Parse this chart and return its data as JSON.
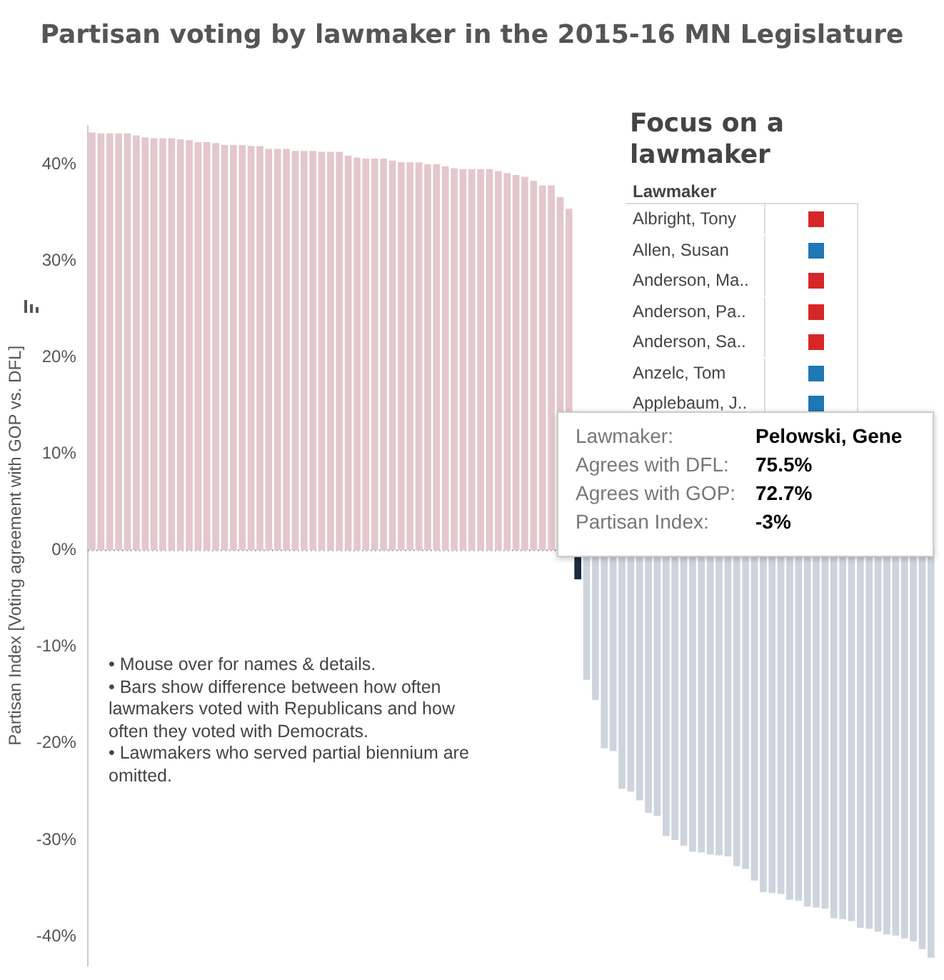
{
  "chart_data": {
    "type": "bar",
    "title": "Partisan voting by lawmaker in the 2015-16 MN Legislature",
    "ylabel": "Partisan Index [Voting agreement with GOP vs. DFL]",
    "categories": [
      null,
      null,
      null,
      null,
      null,
      null,
      null,
      null,
      null,
      null,
      null,
      null,
      null,
      null,
      null,
      null,
      null,
      null,
      null,
      null,
      null,
      null,
      null,
      null,
      null,
      null,
      null,
      null,
      null,
      null,
      null,
      null,
      null,
      null,
      null,
      null,
      null,
      null,
      null,
      null,
      null,
      null,
      null,
      null,
      null,
      null,
      null,
      null,
      null,
      null,
      null,
      null,
      null,
      null,
      null,
      null,
      null,
      null,
      null,
      null,
      null,
      null,
      null,
      null,
      null,
      null,
      null,
      null,
      null,
      null,
      null,
      null,
      null,
      null,
      null,
      null,
      null,
      null,
      null,
      null,
      null,
      null,
      null,
      null,
      null,
      null,
      null,
      null,
      null,
      null,
      null,
      null,
      null,
      null,
      null,
      null
    ],
    "values": [
      43.3,
      43.2,
      43.2,
      43.2,
      43.2,
      43.0,
      42.8,
      42.7,
      42.7,
      42.7,
      42.6,
      42.5,
      42.3,
      42.3,
      42.2,
      42.0,
      42.0,
      42.0,
      41.9,
      41.9,
      41.6,
      41.6,
      41.6,
      41.4,
      41.4,
      41.4,
      41.3,
      41.3,
      41.3,
      40.9,
      40.7,
      40.6,
      40.6,
      40.6,
      40.4,
      40.2,
      40.2,
      40.2,
      40.0,
      40.0,
      39.8,
      39.6,
      39.5,
      39.5,
      39.5,
      39.5,
      39.3,
      39.1,
      38.9,
      38.7,
      38.3,
      37.8,
      37.8,
      36.6,
      35.4,
      -3,
      -13.4,
      -15.5,
      -20.5,
      -20.8,
      -24.7,
      -25.0,
      -25.9,
      -27.2,
      -27.5,
      -29.6,
      -30.0,
      -30.6,
      -31.2,
      -31.3,
      -31.5,
      -31.6,
      -31.7,
      -32.7,
      -33.0,
      -34.2,
      -35.4,
      -35.5,
      -35.6,
      -36.2,
      -36.3,
      -36.9,
      -37.0,
      -37.1,
      -38.1,
      -38.2,
      -38.4,
      -39.1,
      -39.2,
      -39.5,
      -39.8,
      -39.9,
      -40.2,
      -40.5,
      -41.3,
      -42.2
    ],
    "colors": [
      "#e3c7cd",
      "#e3c7cd",
      "#e3c7cd",
      "#e3c7cd",
      "#e3c7cd",
      "#e3c7cd",
      "#e3c7cd",
      "#e3c7cd",
      "#e3c7cd",
      "#e3c7cd",
      "#e3c7cd",
      "#e3c7cd",
      "#e3c7cd",
      "#e3c7cd",
      "#e3c7cd",
      "#e3c7cd",
      "#e3c7cd",
      "#e3c7cd",
      "#e3c7cd",
      "#e3c7cd",
      "#e3c7cd",
      "#e3c7cd",
      "#e3c7cd",
      "#e3c7cd",
      "#e3c7cd",
      "#e3c7cd",
      "#e3c7cd",
      "#e3c7cd",
      "#e3c7cd",
      "#e3c7cd",
      "#e3c7cd",
      "#e3c7cd",
      "#e3c7cd",
      "#e3c7cd",
      "#e3c7cd",
      "#e3c7cd",
      "#e3c7cd",
      "#e3c7cd",
      "#e3c7cd",
      "#e3c7cd",
      "#e3c7cd",
      "#e3c7cd",
      "#e3c7cd",
      "#e3c7cd",
      "#e3c7cd",
      "#e3c7cd",
      "#e3c7cd",
      "#e3c7cd",
      "#e3c7cd",
      "#e3c7cd",
      "#e3c7cd",
      "#e3c7cd",
      "#e3c7cd",
      "#e3c7cd",
      "#e3c7cd",
      "#1b2b3d",
      "#cdd4dd",
      "#cdd4dd",
      "#cdd4dd",
      "#cdd4dd",
      "#cdd4dd",
      "#cdd4dd",
      "#cdd4dd",
      "#cdd4dd",
      "#cdd4dd",
      "#cdd4dd",
      "#cdd4dd",
      "#cdd4dd",
      "#cdd4dd",
      "#cdd4dd",
      "#cdd4dd",
      "#cdd4dd",
      "#cdd4dd",
      "#cdd4dd",
      "#cdd4dd",
      "#cdd4dd",
      "#cdd4dd",
      "#cdd4dd",
      "#cdd4dd",
      "#cdd4dd",
      "#cdd4dd",
      "#cdd4dd",
      "#cdd4dd",
      "#cdd4dd",
      "#cdd4dd",
      "#cdd4dd",
      "#cdd4dd",
      "#cdd4dd",
      "#cdd4dd",
      "#cdd4dd",
      "#cdd4dd",
      "#cdd4dd",
      "#cdd4dd",
      "#cdd4dd",
      "#cdd4dd",
      "#cdd4dd"
    ],
    "ylim": [
      -43,
      44
    ],
    "yticks": [
      {
        "value": -40,
        "label": "-40%"
      },
      {
        "value": -30,
        "label": "-30%"
      },
      {
        "value": -20,
        "label": "-20%"
      },
      {
        "value": -10,
        "label": "-10%"
      },
      {
        "value": 0,
        "label": "0%"
      },
      {
        "value": 10,
        "label": "10%"
      },
      {
        "value": 20,
        "label": "20%"
      },
      {
        "value": 30,
        "label": "30%"
      },
      {
        "value": 40,
        "label": "40%"
      }
    ],
    "ref_lines": [
      {
        "axis": "y",
        "value": 0,
        "color": "#888888",
        "line_style": "dotted"
      }
    ],
    "grid": false,
    "legend": false,
    "tick_labels": "y",
    "annotations": [
      "Focus on a lawmaker",
      "Lawmaker",
      "Albright, Tony",
      "Allen, Susan",
      "Anderson, Ma..",
      "Anderson, Pa..",
      "Anderson, Sa..",
      "Anzelc, Tom",
      "Applebaum, J..",
      "Lawmaker:",
      "Pelowski, Gene",
      "Agrees with DFL:",
      "75.5%",
      "Agrees with GOP:",
      "72.7%",
      "Partisan Index:",
      "-3%",
      "• Mouse over for names & details.",
      "• Bars show difference between how often lawmakers voted with Republicans and how often they voted with Democrats.",
      "• Lawmakers who served partial biennium are omitted."
    ]
  }
}
